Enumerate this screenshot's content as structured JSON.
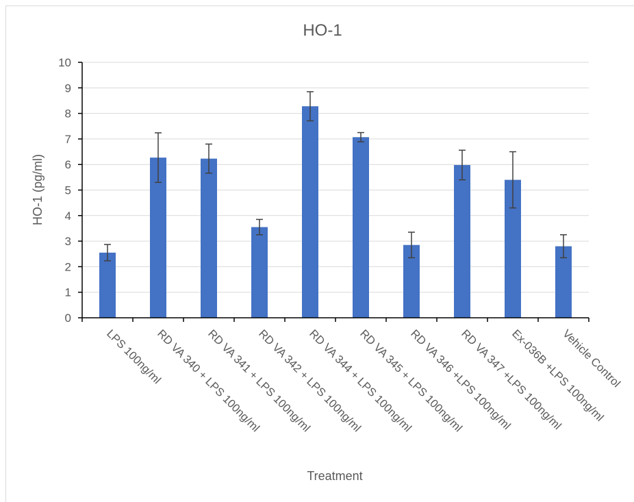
{
  "chart_data": {
    "type": "bar",
    "title": "HO-1",
    "xlabel": "Treatment",
    "ylabel": "HO-1 (pg/ml)",
    "ylim": [
      0,
      10
    ],
    "y_ticks": [
      0,
      1,
      2,
      3,
      4,
      5,
      6,
      7,
      8,
      9,
      10
    ],
    "grid": true,
    "categories": [
      "LPS 100ng/ml",
      "RD VA 340 + LPS 100ng/ml",
      "RD VA 341 + LPS 100ng/ml",
      "RD VA 342 + LPS 100ng/ml",
      "RD VA 344 + LPS 100ng/ml",
      "RD VA 345 + LPS 100ng/ml",
      "RD VA 346 +LPS 100ng/ml",
      "RD VA 347 +LPS 100ng/ml",
      "Ex-036B +LPS 100ng/ml",
      "Vehicle Control"
    ],
    "values": [
      2.55,
      6.27,
      6.23,
      3.55,
      8.28,
      7.07,
      2.85,
      5.98,
      5.4,
      2.8
    ],
    "error": [
      0.32,
      0.97,
      0.57,
      0.3,
      0.57,
      0.18,
      0.5,
      0.58,
      1.1,
      0.45
    ],
    "bar_color": "#4472c4",
    "error_bar_color": "#404040"
  }
}
